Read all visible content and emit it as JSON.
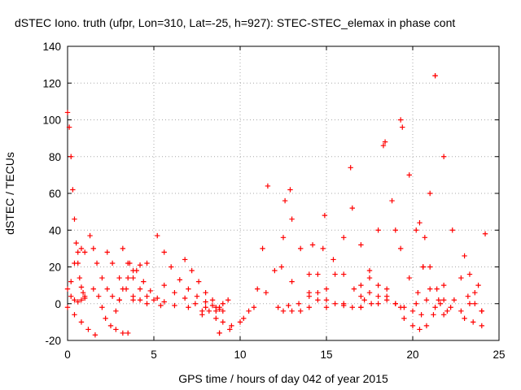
{
  "chart_data": {
    "type": "scatter",
    "title": "dSTEC Iono. truth (ufpr, Lon=310, Lat=-25, h=927): STEC-STEC_elemax in phase cont",
    "xlabel": "GPS time / hours of day 042 of year 2015",
    "ylabel": "dSTEC  / TECUs",
    "xlim": [
      0,
      25
    ],
    "ylim": [
      -20,
      140
    ],
    "xticks": [
      "0",
      "5",
      "10",
      "15",
      "20",
      "25"
    ],
    "yticks": [
      "-20",
      "0",
      "20",
      "40",
      "60",
      "80",
      "100",
      "120",
      "140"
    ],
    "grid": true,
    "marker": "plus",
    "color": "#ff0000",
    "series": [
      {
        "x": [
          0.0,
          0.1,
          0.2,
          0.3,
          0.4,
          0.5,
          0.6,
          0.7,
          0.8,
          0.9,
          1.0
        ],
        "y": [
          104,
          96,
          80,
          62,
          46,
          33,
          22,
          14,
          9,
          6,
          4
        ]
      },
      {
        "x": [
          0.0,
          0.4,
          0.8,
          1.2,
          1.6
        ],
        "y": [
          -2,
          -6,
          -10,
          -14,
          -17
        ]
      },
      {
        "x": [
          0.0,
          0.2,
          0.4,
          0.6,
          0.8,
          1.0
        ],
        "y": [
          8,
          4,
          2,
          1,
          2,
          3
        ]
      },
      {
        "x": [
          0.2,
          0.4,
          0.6,
          0.8,
          1.0
        ],
        "y": [
          12,
          22,
          28,
          30,
          28
        ]
      },
      {
        "x": [
          1.3,
          1.5,
          1.7,
          2.0,
          2.3,
          2.6,
          3.0
        ],
        "y": [
          37,
          30,
          22,
          14,
          8,
          4,
          2
        ]
      },
      {
        "x": [
          1.5,
          1.8,
          2.0,
          2.2,
          2.5,
          2.8,
          3.2,
          3.5
        ],
        "y": [
          8,
          4,
          -2,
          -8,
          -12,
          -14,
          -16,
          -16
        ]
      },
      {
        "x": [
          2.3,
          2.6,
          3.0,
          3.4,
          3.8,
          4.2
        ],
        "y": [
          28,
          22,
          14,
          8,
          4,
          2
        ]
      },
      {
        "x": [
          2.8,
          3.0,
          3.2,
          3.5,
          3.8,
          4.2,
          4.6
        ],
        "y": [
          -4,
          2,
          8,
          14,
          18,
          21,
          22
        ]
      },
      {
        "x": [
          3.2,
          3.5,
          3.8,
          4.2,
          4.6,
          5.0
        ],
        "y": [
          30,
          22,
          14,
          8,
          4,
          2
        ]
      },
      {
        "x": [
          3.6,
          4.0,
          4.4,
          4.8,
          5.2,
          5.6
        ],
        "y": [
          22,
          18,
          12,
          7,
          3,
          1
        ]
      },
      {
        "x": [
          5.2,
          5.6,
          6.0,
          6.5,
          7.0,
          7.5,
          8.0,
          8.4,
          8.8
        ],
        "y": [
          37,
          28,
          20,
          13,
          8,
          4,
          1,
          -1,
          -3
        ]
      },
      {
        "x": [
          5.6,
          6.2,
          6.8,
          7.4,
          8.0,
          8.6
        ],
        "y": [
          10,
          6,
          3,
          0,
          -2,
          -4
        ]
      },
      {
        "x": [
          6.8,
          7.2,
          7.6,
          8.0,
          8.4,
          8.8,
          9.0
        ],
        "y": [
          24,
          18,
          12,
          6,
          2,
          -2,
          -4
        ]
      },
      {
        "x": [
          3.8,
          4.6,
          5.4,
          6.2,
          7.0,
          7.8,
          8.6,
          9.0
        ],
        "y": [
          2,
          0,
          -1,
          -1,
          -2,
          -4,
          -8,
          -10
        ]
      },
      {
        "x": [
          7.8,
          8.2,
          8.6,
          9.0,
          9.3
        ],
        "y": [
          -6,
          -4,
          -2,
          0,
          2
        ]
      },
      {
        "x": [
          8.8,
          9.4,
          10.0,
          10.5,
          11.0,
          11.3,
          11.6
        ],
        "y": [
          -16,
          -14,
          -10,
          -4,
          8,
          30,
          64
        ]
      },
      {
        "x": [
          8.8,
          9.5,
          10.2,
          10.8,
          11.5,
          12.0,
          12.5,
          12.9
        ],
        "y": [
          -16,
          -12,
          -8,
          -2,
          6,
          18,
          36,
          62
        ]
      },
      {
        "x": [
          12.2,
          12.8,
          13.4,
          14.0,
          14.5,
          14.9
        ],
        "y": [
          -2,
          -1,
          0,
          4,
          16,
          48
        ]
      },
      {
        "x": [
          12.5,
          13.0,
          13.5,
          14.0,
          14.5,
          15.0,
          15.5,
          16.0,
          16.4
        ],
        "y": [
          -4,
          -4,
          -4,
          -2,
          2,
          8,
          16,
          36,
          74
        ]
      },
      {
        "x": [
          12.4,
          13.0,
          14.0,
          15.0,
          15.5,
          16.0,
          16.5,
          17.0
        ],
        "y": [
          20,
          12,
          6,
          2,
          0,
          -1,
          -2,
          -2
        ]
      },
      {
        "x": [
          12.6,
          13.0,
          13.5,
          14.0,
          14.5
        ],
        "y": [
          56,
          46,
          30,
          16,
          6
        ]
      },
      {
        "x": [
          14.2,
          14.8,
          15.4,
          16.0,
          16.6,
          17.2,
          17.6
        ],
        "y": [
          32,
          30,
          24,
          16,
          8,
          2,
          0
        ]
      },
      {
        "x": [
          15.0,
          16.0,
          17.0,
          17.5,
          18.0,
          18.4
        ],
        "y": [
          -2,
          0,
          4,
          14,
          40,
          88
        ]
      },
      {
        "x": [
          16.5,
          17.0,
          17.5,
          18.0,
          18.5,
          19.0,
          19.3
        ],
        "y": [
          52,
          32,
          18,
          10,
          4,
          0,
          -2
        ]
      },
      {
        "x": [
          17.0,
          17.5,
          18.0,
          18.5,
          19.0,
          19.5,
          20.0,
          20.5
        ],
        "y": [
          10,
          6,
          4,
          2,
          0,
          -2,
          -4,
          -6
        ]
      },
      {
        "x": [
          17.0,
          18.0,
          18.5,
          19.0,
          19.3
        ],
        "y": [
          -2,
          0,
          8,
          40,
          100
        ]
      },
      {
        "x": [
          18.3,
          18.8,
          19.3,
          19.8,
          20.3,
          20.8,
          21.3,
          21.8
        ],
        "y": [
          86,
          56,
          30,
          14,
          6,
          2,
          -2,
          -6
        ]
      },
      {
        "x": [
          19.4,
          19.8,
          20.2,
          20.6,
          21.0,
          21.5,
          22.0
        ],
        "y": [
          96,
          70,
          40,
          20,
          8,
          2,
          -4
        ]
      },
      {
        "x": [
          19.5,
          20.0,
          20.4,
          20.8,
          21.2,
          21.6
        ],
        "y": [
          -8,
          -12,
          -14,
          -12,
          -6,
          0
        ]
      },
      {
        "x": [
          20.2,
          20.6,
          21.0,
          21.3
        ],
        "y": [
          0,
          20,
          60,
          124
        ]
      },
      {
        "x": [
          20.4,
          20.7,
          21.0,
          21.4,
          21.8,
          22.2
        ],
        "y": [
          44,
          36,
          20,
          8,
          2,
          -2
        ]
      },
      {
        "x": [
          21.3,
          21.8,
          22.3,
          22.8,
          23.2,
          23.6,
          24.0
        ],
        "y": [
          124,
          80,
          40,
          14,
          4,
          0,
          -4
        ]
      },
      {
        "x": [
          21.8,
          22.4,
          23.0,
          23.5,
          24.0
        ],
        "y": [
          10,
          2,
          -8,
          -10,
          -12
        ]
      },
      {
        "x": [
          23.0,
          23.3,
          23.6,
          24.0
        ],
        "y": [
          26,
          16,
          6,
          -4
        ]
      },
      {
        "x": [
          22.8,
          23.3,
          23.8,
          24.2
        ],
        "y": [
          -4,
          0,
          10,
          38
        ]
      }
    ]
  }
}
